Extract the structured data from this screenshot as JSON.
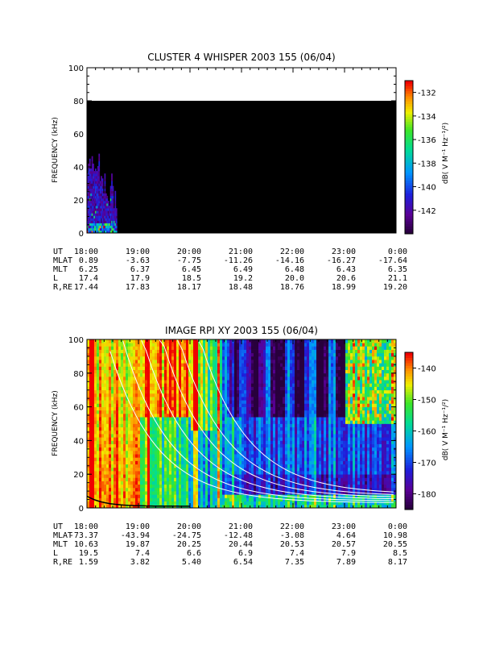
{
  "chart_data": [
    {
      "type": "heatmap",
      "title": "CLUSTER 4 WHISPER 2003 155 (06/04)",
      "ylabel": "FREQUENCY (kHz)",
      "ylim": [
        0,
        100
      ],
      "yticks": [
        "0",
        "20",
        "40",
        "60",
        "80",
        "100"
      ],
      "colorbar": {
        "label": "dB( V M⁻¹ Hz⁻¹/²)",
        "ticks": [
          "-132",
          "-134",
          "-136",
          "-138",
          "-140",
          "-142"
        ],
        "range": [
          -144,
          -131
        ]
      },
      "data_freq_top_khz": 80,
      "background": "black",
      "activity": {
        "start_time": "18:00",
        "end_time": "18:35",
        "max_freq_khz": 48
      },
      "time_table": [
        {
          "key": "UT",
          "values": [
            "18:00",
            "19:00",
            "20:00",
            "21:00",
            "22:00",
            "23:00",
            "0:00"
          ]
        },
        {
          "key": "MLAT",
          "values": [
            "0.89",
            "-3.63",
            "-7.75",
            "-11.26",
            "-14.16",
            "-16.27",
            "-17.64"
          ]
        },
        {
          "key": "MLT",
          "values": [
            "6.25",
            "6.37",
            "6.45",
            "6.49",
            "6.48",
            "6.43",
            "6.35"
          ]
        },
        {
          "key": "L",
          "values": [
            "17.4",
            "17.9",
            "18.5",
            "19.2",
            "20.0",
            "20.6",
            "21.1"
          ]
        },
        {
          "key": "R,RE",
          "values": [
            "17.44",
            "17.83",
            "18.17",
            "18.48",
            "18.76",
            "18.99",
            "19.20"
          ]
        }
      ]
    },
    {
      "type": "heatmap",
      "title": "IMAGE RPI XY 2003 155 (06/04)",
      "ylabel": "FREQUENCY (kHz)",
      "ylim": [
        0,
        100
      ],
      "yticks": [
        "0",
        "20",
        "40",
        "60",
        "80",
        "100"
      ],
      "colorbar": {
        "label": "dB( V M⁻¹ Hz⁻¹/²)",
        "ticks": [
          "-140",
          "-150",
          "-160",
          "-170",
          "-180"
        ],
        "range": [
          -185,
          -135
        ]
      },
      "time_table": [
        {
          "key": "UT",
          "values": [
            "18:00",
            "19:00",
            "20:00",
            "21:00",
            "22:00",
            "23:00",
            "0:00"
          ]
        },
        {
          "key": "MLAT",
          "values": [
            "-73.37",
            "-43.94",
            "-24.75",
            "-12.48",
            "-3.08",
            "4.64",
            "10.98"
          ]
        },
        {
          "key": "MLT",
          "values": [
            "10.63",
            "19.87",
            "20.25",
            "20.44",
            "20.53",
            "20.57",
            "20.55"
          ]
        },
        {
          "key": "L",
          "values": [
            "19.5",
            "7.4",
            "6.6",
            "6.9",
            "7.4",
            "7.9",
            "8.5"
          ]
        },
        {
          "key": "R,RE",
          "values": [
            "1.59",
            "3.82",
            "5.40",
            "6.54",
            "7.35",
            "7.89",
            "8.17"
          ]
        }
      ]
    }
  ]
}
